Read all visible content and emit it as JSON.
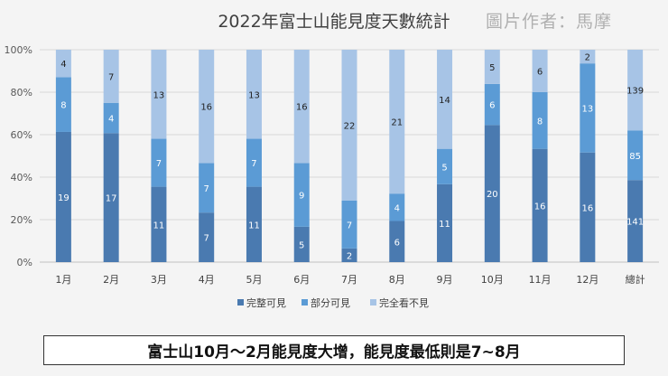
{
  "chart_data": {
    "type": "bar",
    "stacked": "percent",
    "title": "2022年富士山能見度天數統計",
    "credit": "圖片作者：馬摩",
    "categories": [
      "1月",
      "2月",
      "3月",
      "4月",
      "5月",
      "6月",
      "7月",
      "8月",
      "9月",
      "10月",
      "11月",
      "12月",
      "總計"
    ],
    "series": [
      {
        "name": "完整可見",
        "color": "#4a7ab0",
        "values": [
          19,
          17,
          11,
          7,
          11,
          5,
          2,
          6,
          11,
          20,
          16,
          16,
          141
        ]
      },
      {
        "name": "部分可見",
        "color": "#5b9bd5",
        "values": [
          8,
          4,
          7,
          7,
          7,
          9,
          7,
          4,
          5,
          6,
          8,
          13,
          85
        ]
      },
      {
        "name": "完全看不見",
        "color": "#a7c4e6",
        "values": [
          4,
          7,
          13,
          16,
          13,
          16,
          22,
          21,
          14,
          5,
          6,
          2,
          139
        ]
      }
    ],
    "yticks": [
      "0%",
      "20%",
      "40%",
      "60%",
      "80%",
      "100%"
    ],
    "ylim": [
      0,
      1
    ],
    "legend_position": "bottom"
  },
  "caption": "富士山10月～2月能見度大增，能見度最低則是7~8月"
}
